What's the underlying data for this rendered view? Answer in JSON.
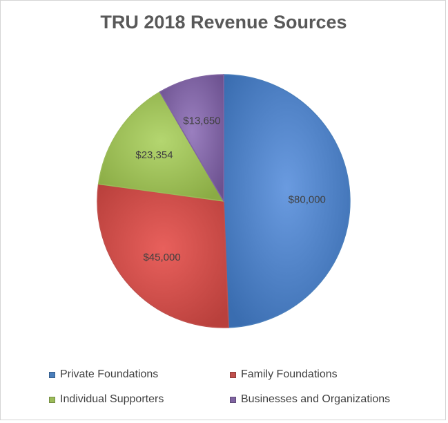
{
  "chart_data": {
    "type": "pie",
    "title": "TRU 2018 Revenue Sources",
    "categories": [
      "Private Foundations",
      "Family Foundations",
      "Individual Supporters",
      "Businesses and Organizations"
    ],
    "values": [
      80000,
      45000,
      23354,
      13650
    ],
    "data_labels": [
      "$80,000",
      "$45,000",
      "$23,354",
      "$13,650"
    ],
    "colors": [
      "#4a7ebb",
      "#c0504d",
      "#9bbb59",
      "#8064a2"
    ],
    "legend": "bottom"
  }
}
